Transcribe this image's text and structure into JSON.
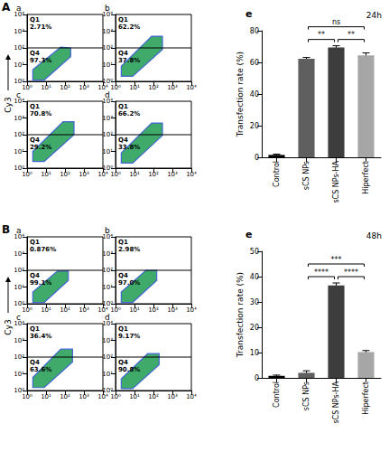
{
  "chart_data": [
    {
      "type": "scatter",
      "group": "A",
      "title": "a",
      "y_label": "Cy3",
      "log": true,
      "grid": false,
      "xlim": [
        1,
        10000
      ],
      "ylim": [
        1,
        10000
      ],
      "xticks": [
        {
          "value": 1,
          "label": "10⁰"
        },
        {
          "value": 10,
          "label": "10¹"
        },
        {
          "value": 100,
          "label": "10²"
        },
        {
          "value": 1000,
          "label": "10³"
        },
        {
          "value": 10000,
          "label": "10⁴"
        }
      ],
      "yticks": [
        {
          "value": 1,
          "label": "10⁰"
        },
        {
          "value": 10,
          "label": "10¹"
        },
        {
          "value": 100,
          "label": "10²"
        },
        {
          "value": 1000,
          "label": "10³"
        },
        {
          "value": 10000,
          "label": "10⁴"
        }
      ],
      "gate": 100,
      "quadrants": [
        {
          "name": "Q1",
          "value": 2.71,
          "value_label": "2.71%"
        },
        {
          "name": "Q4",
          "value": 97.3,
          "value_label": "97.3%"
        }
      ],
      "cloud": [
        [
          2,
          1.2
        ],
        [
          8,
          1.2
        ],
        [
          200,
          30
        ],
        [
          200,
          100
        ],
        [
          60,
          110
        ],
        [
          2,
          5
        ]
      ],
      "color": "#2aa15a"
    },
    {
      "type": "scatter",
      "group": "A",
      "title": "b",
      "y_label": "Cy3",
      "log": true,
      "grid": false,
      "xlim": [
        1,
        10000
      ],
      "ylim": [
        1,
        10000
      ],
      "xticks": [
        {
          "value": 1,
          "label": "10⁰"
        },
        {
          "value": 10,
          "label": "10¹"
        },
        {
          "value": 100,
          "label": "10²"
        },
        {
          "value": 1000,
          "label": "10³"
        },
        {
          "value": 10000,
          "label": "10⁴"
        }
      ],
      "yticks": [
        {
          "value": 1,
          "label": "10⁰"
        },
        {
          "value": 10,
          "label": "10¹"
        },
        {
          "value": 100,
          "label": "10²"
        },
        {
          "value": 1000,
          "label": "10³"
        },
        {
          "value": 10000,
          "label": "10⁴"
        }
      ],
      "gate": 100,
      "quadrants": [
        {
          "name": "Q1",
          "value": 62.2,
          "value_label": "62.2%"
        },
        {
          "name": "Q4",
          "value": 37.8,
          "value_label": "37.8%"
        }
      ],
      "cloud": [
        [
          2,
          2
        ],
        [
          8,
          2
        ],
        [
          300,
          80
        ],
        [
          300,
          500
        ],
        [
          80,
          500
        ],
        [
          2,
          8
        ]
      ],
      "color": "#2aa15a"
    },
    {
      "type": "scatter",
      "group": "A",
      "title": "c",
      "y_label": "Cy3",
      "log": true,
      "grid": false,
      "xlim": [
        1,
        10000
      ],
      "ylim": [
        1,
        10000
      ],
      "xticks": [
        {
          "value": 1,
          "label": "10⁰"
        },
        {
          "value": 10,
          "label": "10¹"
        },
        {
          "value": 100,
          "label": "10²"
        },
        {
          "value": 1000,
          "label": "10³"
        },
        {
          "value": 10000,
          "label": "10⁴"
        }
      ],
      "yticks": [
        {
          "value": 1,
          "label": "10⁰"
        },
        {
          "value": 10,
          "label": "10¹"
        },
        {
          "value": 100,
          "label": "10²"
        },
        {
          "value": 1000,
          "label": "10³"
        },
        {
          "value": 10000,
          "label": "10⁴"
        }
      ],
      "gate": 100,
      "quadrants": [
        {
          "name": "Q1",
          "value": 70.8,
          "value_label": "70.8%"
        },
        {
          "name": "Q4",
          "value": 29.2,
          "value_label": "29.2%"
        }
      ],
      "cloud": [
        [
          2,
          2.5
        ],
        [
          8,
          2.5
        ],
        [
          300,
          100
        ],
        [
          300,
          600
        ],
        [
          80,
          600
        ],
        [
          2,
          10
        ]
      ],
      "color": "#2aa15a"
    },
    {
      "type": "scatter",
      "group": "A",
      "title": "d",
      "y_label": "Cy3",
      "log": true,
      "grid": false,
      "xlim": [
        1,
        10000
      ],
      "ylim": [
        1,
        10000
      ],
      "xticks": [
        {
          "value": 1,
          "label": "10⁰"
        },
        {
          "value": 10,
          "label": "10¹"
        },
        {
          "value": 100,
          "label": "10²"
        },
        {
          "value": 1000,
          "label": "10³"
        },
        {
          "value": 10000,
          "label": "10⁴"
        }
      ],
      "yticks": [
        {
          "value": 1,
          "label": "10⁰"
        },
        {
          "value": 10,
          "label": "10¹"
        },
        {
          "value": 100,
          "label": "10²"
        },
        {
          "value": 1000,
          "label": "10³"
        },
        {
          "value": 10000,
          "label": "10⁴"
        }
      ],
      "gate": 100,
      "quadrants": [
        {
          "name": "Q1",
          "value": 66.2,
          "value_label": "66.2%"
        },
        {
          "name": "Q4",
          "value": 33.8,
          "value_label": "33.8%"
        }
      ],
      "cloud": [
        [
          2,
          2
        ],
        [
          8,
          2
        ],
        [
          300,
          90
        ],
        [
          300,
          500
        ],
        [
          80,
          500
        ],
        [
          2,
          8
        ]
      ],
      "color": "#2aa15a"
    },
    {
      "type": "scatter",
      "group": "B",
      "title": "a",
      "y_label": "Cy3",
      "log": true,
      "grid": false,
      "xlim": [
        1,
        10000
      ],
      "ylim": [
        1,
        10000
      ],
      "xticks": [
        {
          "value": 1,
          "label": "10⁰"
        },
        {
          "value": 10,
          "label": "10¹"
        },
        {
          "value": 100,
          "label": "10²"
        },
        {
          "value": 1000,
          "label": "10³"
        },
        {
          "value": 10000,
          "label": "10⁴"
        }
      ],
      "yticks": [
        {
          "value": 1,
          "label": "10⁰"
        },
        {
          "value": 10,
          "label": "10¹"
        },
        {
          "value": 100,
          "label": "10²"
        },
        {
          "value": 1000,
          "label": "10³"
        },
        {
          "value": 10000,
          "label": "10⁴"
        }
      ],
      "gate": 100,
      "quadrants": [
        {
          "name": "Q1",
          "value": 0.876,
          "value_label": "0.876%"
        },
        {
          "name": "Q4",
          "value": 99.1,
          "value_label": "99.1%"
        }
      ],
      "cloud": [
        [
          2,
          1.2
        ],
        [
          8,
          1.2
        ],
        [
          150,
          25
        ],
        [
          150,
          90
        ],
        [
          40,
          90
        ],
        [
          2,
          5
        ]
      ],
      "color": "#2aa15a"
    },
    {
      "type": "scatter",
      "group": "B",
      "title": "b",
      "y_label": "Cy3",
      "log": true,
      "grid": false,
      "xlim": [
        1,
        10000
      ],
      "ylim": [
        1,
        10000
      ],
      "xticks": [
        {
          "value": 1,
          "label": "10⁰"
        },
        {
          "value": 10,
          "label": "10¹"
        },
        {
          "value": 100,
          "label": "10²"
        },
        {
          "value": 1000,
          "label": "10³"
        },
        {
          "value": 10000,
          "label": "10⁴"
        }
      ],
      "yticks": [
        {
          "value": 1,
          "label": "10⁰"
        },
        {
          "value": 10,
          "label": "10¹"
        },
        {
          "value": 100,
          "label": "10²"
        },
        {
          "value": 1000,
          "label": "10³"
        },
        {
          "value": 10000,
          "label": "10⁴"
        }
      ],
      "gate": 100,
      "quadrants": [
        {
          "name": "Q1",
          "value": 2.98,
          "value_label": "2.98%"
        },
        {
          "name": "Q4",
          "value": 97.0,
          "value_label": "97.0%"
        }
      ],
      "cloud": [
        [
          2,
          1.2
        ],
        [
          8,
          1.2
        ],
        [
          150,
          25
        ],
        [
          150,
          100
        ],
        [
          40,
          100
        ],
        [
          2,
          5
        ]
      ],
      "color": "#2aa15a"
    },
    {
      "type": "scatter",
      "group": "B",
      "title": "c",
      "y_label": "Cy3",
      "log": true,
      "grid": false,
      "xlim": [
        1,
        10000
      ],
      "ylim": [
        1,
        10000
      ],
      "xticks": [
        {
          "value": 1,
          "label": "10⁰"
        },
        {
          "value": 10,
          "label": "10¹"
        },
        {
          "value": 100,
          "label": "10²"
        },
        {
          "value": 1000,
          "label": "10³"
        },
        {
          "value": 10000,
          "label": "10⁴"
        }
      ],
      "yticks": [
        {
          "value": 1,
          "label": "10⁰"
        },
        {
          "value": 10,
          "label": "10¹"
        },
        {
          "value": 100,
          "label": "10²"
        },
        {
          "value": 1000,
          "label": "10³"
        },
        {
          "value": 10000,
          "label": "10⁴"
        }
      ],
      "gate": 100,
      "quadrants": [
        {
          "name": "Q1",
          "value": 36.4,
          "value_label": "36.4%"
        },
        {
          "name": "Q4",
          "value": 63.6,
          "value_label": "63.6%"
        }
      ],
      "cloud": [
        [
          2,
          1.5
        ],
        [
          8,
          1.5
        ],
        [
          250,
          50
        ],
        [
          250,
          300
        ],
        [
          60,
          300
        ],
        [
          2,
          6
        ]
      ],
      "color": "#2aa15a"
    },
    {
      "type": "scatter",
      "group": "B",
      "title": "d",
      "y_label": "Cy3",
      "log": true,
      "grid": false,
      "xlim": [
        1,
        10000
      ],
      "ylim": [
        1,
        10000
      ],
      "xticks": [
        {
          "value": 1,
          "label": "10⁰"
        },
        {
          "value": 10,
          "label": "10¹"
        },
        {
          "value": 100,
          "label": "10²"
        },
        {
          "value": 1000,
          "label": "10³"
        },
        {
          "value": 10000,
          "label": "10⁴"
        }
      ],
      "yticks": [
        {
          "value": 1,
          "label": "10⁰"
        },
        {
          "value": 10,
          "label": "10¹"
        },
        {
          "value": 100,
          "label": "10²"
        },
        {
          "value": 1000,
          "label": "10³"
        },
        {
          "value": 10000,
          "label": "10⁴"
        }
      ],
      "gate": 100,
      "quadrants": [
        {
          "name": "Q1",
          "value": 9.17,
          "value_label": "9.17%"
        },
        {
          "name": "Q4",
          "value": 90.8,
          "value_label": "90.8%"
        }
      ],
      "cloud": [
        [
          2,
          1.3
        ],
        [
          8,
          1.3
        ],
        [
          200,
          35
        ],
        [
          200,
          160
        ],
        [
          50,
          160
        ],
        [
          2,
          5
        ]
      ],
      "color": "#2aa15a"
    },
    {
      "type": "bar",
      "title": "e",
      "subtitle": "24h",
      "y_label": "Transfection rate (%)",
      "grid": false,
      "categories": [
        "Control",
        "sCS NPs",
        "sCS NPs-HA",
        "Hiperfect"
      ],
      "values": [
        1.5,
        62.3,
        69.5,
        64.5
      ],
      "errors": [
        0.5,
        0.8,
        1.0,
        1.5
      ],
      "colors": [
        "#000000",
        "#5f5f5f",
        "#3d3d3d",
        "#a6a6a6"
      ],
      "ylim": [
        0,
        80
      ],
      "yticks": [
        0,
        20,
        40,
        60,
        80
      ],
      "comparisons": [
        {
          "from": "sCS NPs",
          "to": "sCS NPs-HA",
          "label": "**"
        },
        {
          "from": "sCS NPs-HA",
          "to": "Hiperfect",
          "label": "**"
        },
        {
          "from": "sCS NPs",
          "to": "Hiperfect",
          "label": "ns"
        }
      ]
    },
    {
      "type": "bar",
      "title": "e",
      "subtitle": "48h",
      "y_label": "Transfection rate (%)",
      "grid": false,
      "categories": [
        "Control",
        "sCS NPs",
        "sCS NPs-HA",
        "Hiperfect"
      ],
      "values": [
        0.8,
        2.0,
        36.5,
        10.2
      ],
      "errors": [
        0.3,
        0.8,
        1.0,
        0.6
      ],
      "colors": [
        "#000000",
        "#5f5f5f",
        "#3d3d3d",
        "#a6a6a6"
      ],
      "ylim": [
        0,
        50
      ],
      "yticks": [
        0,
        10,
        20,
        30,
        40,
        50
      ],
      "comparisons": [
        {
          "from": "sCS NPs",
          "to": "sCS NPs-HA",
          "label": "****"
        },
        {
          "from": "sCS NPs-HA",
          "to": "Hiperfect",
          "label": "****"
        },
        {
          "from": "sCS NPs",
          "to": "Hiperfect",
          "label": "***"
        }
      ]
    }
  ]
}
